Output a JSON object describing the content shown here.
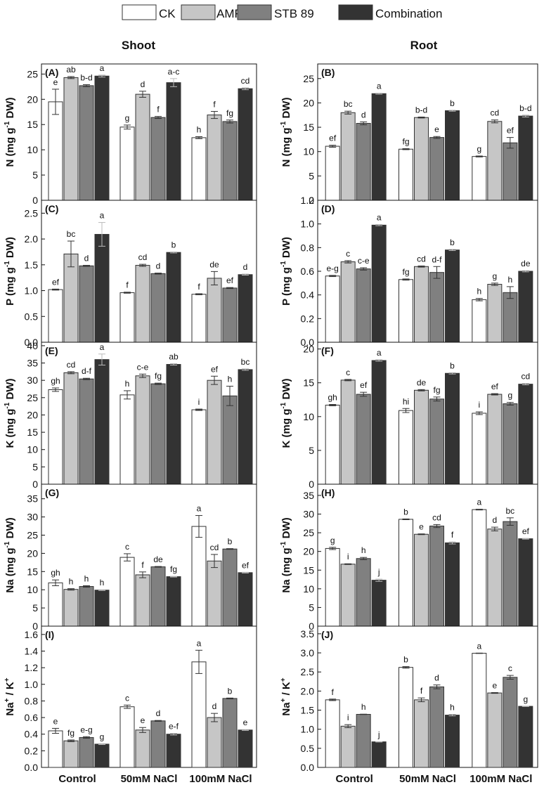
{
  "figure": {
    "legend": [
      "CK",
      "AMF",
      "STB 89",
      "Combination"
    ],
    "column_titles": [
      "Shoot",
      "Root"
    ],
    "groups": [
      "Control",
      "50mM NaCl",
      "100mM NaCl"
    ],
    "series_colors": [
      "#ffffff",
      "#c6c6c6",
      "#808080",
      "#333333"
    ]
  },
  "chart_data": [
    {
      "type": "bar",
      "panel_label": "(A)",
      "ylabel": "N (mg g-1 DW)",
      "ylabel_main": "N",
      "ylabel_unit": " (mg g",
      "ylabel_sup": "-1",
      "ylabel_end": " DW)",
      "ylim": [
        0,
        27
      ],
      "yticks": [
        0,
        5,
        10,
        15,
        20,
        25
      ],
      "tick_labels": [
        "0",
        "5",
        "10",
        "15",
        "20",
        "25"
      ],
      "categories": [
        "Control",
        "50mM NaCl",
        "100mM NaCl"
      ],
      "series": [
        {
          "name": "CK",
          "values": [
            19.5,
            14.5,
            12.4
          ],
          "errors": [
            2.5,
            0.4,
            0.2
          ],
          "letters": [
            "e",
            "g",
            "h"
          ]
        },
        {
          "name": "AMF",
          "values": [
            24.3,
            21.0,
            16.9
          ],
          "errors": [
            0.2,
            0.6,
            0.7
          ],
          "letters": [
            "ab",
            "d",
            "f"
          ]
        },
        {
          "name": "STB 89",
          "values": [
            22.7,
            16.4,
            15.6
          ],
          "errors": [
            0.2,
            0.2,
            0.3
          ],
          "letters": [
            "b-d",
            "f",
            "fg"
          ]
        },
        {
          "name": "Combination",
          "values": [
            24.6,
            23.3,
            22.1
          ],
          "errors": [
            0.2,
            0.8,
            0.2
          ],
          "letters": [
            "a",
            "a-c",
            "cd"
          ]
        }
      ]
    },
    {
      "type": "bar",
      "panel_label": "(B)",
      "ylabel": "N (mg g-1 DW)",
      "ylabel_main": "N",
      "ylabel_unit": " (mg g",
      "ylabel_sup": "-1",
      "ylabel_end": " DW)",
      "ylim": [
        0,
        28
      ],
      "yticks": [
        0,
        5,
        10,
        15,
        20,
        25
      ],
      "tick_labels": [
        "0",
        "5",
        "10",
        "15",
        "20",
        "25"
      ],
      "categories": [
        "Control",
        "50mM NaCl",
        "100mM NaCl"
      ],
      "series": [
        {
          "name": "CK",
          "values": [
            11.1,
            10.5,
            9.0
          ],
          "errors": [
            0.2,
            0.1,
            0.1
          ],
          "letters": [
            "ef",
            "fg",
            "g"
          ]
        },
        {
          "name": "AMF",
          "values": [
            18.0,
            17.0,
            16.2
          ],
          "errors": [
            0.3,
            0.1,
            0.3
          ],
          "letters": [
            "bc",
            "b-d",
            "cd"
          ]
        },
        {
          "name": "STB 89",
          "values": [
            15.8,
            12.9,
            11.8
          ],
          "errors": [
            0.3,
            0.2,
            1.1
          ],
          "letters": [
            "d",
            "e",
            "ef"
          ]
        },
        {
          "name": "Combination",
          "values": [
            21.9,
            18.4,
            17.3
          ],
          "errors": [
            0.1,
            0.1,
            0.2
          ],
          "letters": [
            "a",
            "b",
            "b-d"
          ]
        }
      ]
    },
    {
      "type": "bar",
      "panel_label": "(C)",
      "ylabel": "P (mg g-1 DW)",
      "ylabel_main": "P",
      "ylabel_unit": " (mg g",
      "ylabel_sup": "-1",
      "ylabel_end": " DW)",
      "ylim": [
        0,
        2.75
      ],
      "yticks": [
        0,
        0.5,
        1.0,
        1.5,
        2.0,
        2.5
      ],
      "tick_labels": [
        "0.0",
        "0.5",
        "1.0",
        "1.5",
        "2.0",
        "2.5"
      ],
      "categories": [
        "Control",
        "50mM NaCl",
        "100mM NaCl"
      ],
      "series": [
        {
          "name": "CK",
          "values": [
            1.02,
            0.96,
            0.93
          ],
          "errors": [
            0.01,
            0.01,
            0.01
          ],
          "letters": [
            "ef",
            "f",
            "f"
          ]
        },
        {
          "name": "AMF",
          "values": [
            1.71,
            1.49,
            1.24
          ],
          "errors": [
            0.25,
            0.02,
            0.13
          ],
          "letters": [
            "bc",
            "cd",
            "de"
          ]
        },
        {
          "name": "STB 89",
          "values": [
            1.48,
            1.33,
            1.05
          ],
          "errors": [
            0.01,
            0.01,
            0.01
          ],
          "letters": [
            "d",
            "d",
            "ef"
          ]
        },
        {
          "name": "Combination",
          "values": [
            2.09,
            1.74,
            1.31
          ],
          "errors": [
            0.23,
            0.01,
            0.01
          ],
          "letters": [
            "a",
            "b",
            "d"
          ]
        }
      ]
    },
    {
      "type": "bar",
      "panel_label": "(D)",
      "ylabel": "P (mg g-1 DW)",
      "ylabel_main": "P",
      "ylabel_unit": " (mg g",
      "ylabel_sup": "-1",
      "ylabel_end": " DW)",
      "ylim": [
        0,
        1.2
      ],
      "yticks": [
        0,
        0.2,
        0.4,
        0.6,
        0.8,
        1.0,
        1.2
      ],
      "tick_labels": [
        "0.0",
        "0.2",
        "0.4",
        "0.6",
        "0.8",
        "1.0",
        "1.2"
      ],
      "categories": [
        "Control",
        "50mM NaCl",
        "100mM NaCl"
      ],
      "series": [
        {
          "name": "CK",
          "values": [
            0.56,
            0.53,
            0.36
          ],
          "errors": [
            0.005,
            0.005,
            0.01
          ],
          "letters": [
            "e-g",
            "fg",
            "h"
          ]
        },
        {
          "name": "AMF",
          "values": [
            0.68,
            0.64,
            0.49
          ],
          "errors": [
            0.01,
            0.005,
            0.01
          ],
          "letters": [
            "c",
            "cd",
            "g"
          ]
        },
        {
          "name": "STB 89",
          "values": [
            0.62,
            0.59,
            0.42
          ],
          "errors": [
            0.01,
            0.05,
            0.05
          ],
          "letters": [
            "c-e",
            "d-f",
            "h"
          ]
        },
        {
          "name": "Combination",
          "values": [
            0.99,
            0.78,
            0.6
          ],
          "errors": [
            0.005,
            0.005,
            0.005
          ],
          "letters": [
            "a",
            "b",
            "de"
          ]
        }
      ]
    },
    {
      "type": "bar",
      "panel_label": "(E)",
      "ylabel": "K (mg g-1 DW)",
      "ylabel_main": "K",
      "ylabel_unit": " (mg g",
      "ylabel_sup": "-1",
      "ylabel_end": " DW)",
      "ylim": [
        0,
        41
      ],
      "yticks": [
        0,
        5,
        10,
        15,
        20,
        25,
        30,
        35,
        40
      ],
      "tick_labels": [
        "0",
        "5",
        "10",
        "15",
        "20",
        "25",
        "30",
        "35",
        "40"
      ],
      "categories": [
        "Control",
        "50mM NaCl",
        "100mM NaCl"
      ],
      "series": [
        {
          "name": "CK",
          "values": [
            27.3,
            25.8,
            21.5
          ],
          "errors": [
            0.5,
            1.2,
            0.2
          ],
          "letters": [
            "gh",
            "h",
            "i"
          ]
        },
        {
          "name": "AMF",
          "values": [
            32.2,
            31.3,
            30.0
          ],
          "errors": [
            0.3,
            0.5,
            1.2
          ],
          "letters": [
            "cd",
            "c-e",
            "ef"
          ]
        },
        {
          "name": "STB 89",
          "values": [
            30.4,
            29.0,
            25.5
          ],
          "errors": [
            0.2,
            0.2,
            2.8
          ],
          "letters": [
            "d-f",
            "fg",
            "h"
          ]
        },
        {
          "name": "Combination",
          "values": [
            36.0,
            34.6,
            33.1
          ],
          "errors": [
            1.6,
            0.2,
            0.2
          ],
          "letters": [
            "a",
            "ab",
            "bc"
          ]
        }
      ]
    },
    {
      "type": "bar",
      "panel_label": "(F)",
      "ylabel": "K (mg g-1 DW)",
      "ylabel_main": "K",
      "ylabel_unit": " (mg g",
      "ylabel_sup": "-1",
      "ylabel_end": " DW)",
      "ylim": [
        0,
        21
      ],
      "yticks": [
        0,
        5,
        10,
        15,
        20
      ],
      "tick_labels": [
        "0",
        "5",
        "10",
        "15",
        "20"
      ],
      "categories": [
        "Control",
        "50mM NaCl",
        "100mM NaCl"
      ],
      "series": [
        {
          "name": "CK",
          "values": [
            11.7,
            10.9,
            10.5
          ],
          "errors": [
            0.1,
            0.3,
            0.2
          ],
          "letters": [
            "gh",
            "hi",
            "i"
          ]
        },
        {
          "name": "AMF",
          "values": [
            15.4,
            13.9,
            13.3
          ],
          "errors": [
            0.1,
            0.1,
            0.1
          ],
          "letters": [
            "c",
            "de",
            "ef"
          ]
        },
        {
          "name": "STB 89",
          "values": [
            13.3,
            12.6,
            11.9
          ],
          "errors": [
            0.3,
            0.3,
            0.2
          ],
          "letters": [
            "ef",
            "fg",
            "g"
          ]
        },
        {
          "name": "Combination",
          "values": [
            18.3,
            16.4,
            14.8
          ],
          "errors": [
            0.1,
            0.1,
            0.1
          ],
          "letters": [
            "a",
            "b",
            "cd"
          ]
        }
      ]
    },
    {
      "type": "bar",
      "panel_label": "(G)",
      "ylabel": "Na (mg g-1 DW)",
      "ylabel_main": "Na",
      "ylabel_unit": " (mg g",
      "ylabel_sup": "-1",
      "ylabel_end": " DW)",
      "ylim": [
        0,
        39
      ],
      "yticks": [
        0,
        5,
        10,
        15,
        20,
        25,
        30,
        35
      ],
      "tick_labels": [
        "0",
        "5",
        "10",
        "15",
        "20",
        "25",
        "30",
        "35"
      ],
      "categories": [
        "Control",
        "50mM NaCl",
        "100mM NaCl"
      ],
      "series": [
        {
          "name": "CK",
          "values": [
            11.9,
            18.9,
            27.4
          ],
          "errors": [
            0.8,
            1.0,
            3.0
          ],
          "letters": [
            "gh",
            "c",
            "a"
          ]
        },
        {
          "name": "AMF",
          "values": [
            10.1,
            14.1,
            17.9
          ],
          "errors": [
            0.2,
            0.8,
            1.8
          ],
          "letters": [
            "h",
            "f",
            "cd"
          ]
        },
        {
          "name": "STB 89",
          "values": [
            10.9,
            16.3,
            21.2
          ],
          "errors": [
            0.2,
            0.1,
            0.1
          ],
          "letters": [
            "h",
            "de",
            "b"
          ]
        },
        {
          "name": "Combination",
          "values": [
            9.9,
            13.6,
            14.7
          ],
          "errors": [
            0.1,
            0.1,
            0.1
          ],
          "letters": [
            "h",
            "fg",
            "ef"
          ]
        }
      ]
    },
    {
      "type": "bar",
      "panel_label": "(H)",
      "ylabel": "Na (mg g-1 DW)",
      "ylabel_main": "Na",
      "ylabel_unit": " (mg g",
      "ylabel_sup": "-1",
      "ylabel_end": " DW)",
      "ylim": [
        0,
        38
      ],
      "yticks": [
        0,
        5,
        10,
        15,
        20,
        25,
        30,
        35
      ],
      "tick_labels": [
        "0",
        "5",
        "10",
        "15",
        "20",
        "25",
        "30",
        "35"
      ],
      "categories": [
        "Control",
        "50mM NaCl",
        "100mM NaCl"
      ],
      "series": [
        {
          "name": "CK",
          "values": [
            20.8,
            28.6,
            31.2
          ],
          "errors": [
            0.3,
            0.1,
            0.1
          ],
          "letters": [
            "g",
            "b",
            "a"
          ]
        },
        {
          "name": "AMF",
          "values": [
            16.6,
            24.6,
            26.0
          ],
          "errors": [
            0.1,
            0.1,
            0.5
          ],
          "letters": [
            "i",
            "e",
            "d"
          ]
        },
        {
          "name": "STB 89",
          "values": [
            18.1,
            26.8,
            28.0
          ],
          "errors": [
            0.3,
            0.4,
            1.0
          ],
          "letters": [
            "h",
            "cd",
            "bc"
          ]
        },
        {
          "name": "Combination",
          "values": [
            12.3,
            22.3,
            23.4
          ],
          "errors": [
            0.3,
            0.3,
            0.1
          ],
          "letters": [
            "j",
            "f",
            "ef"
          ]
        }
      ]
    },
    {
      "type": "bar",
      "panel_label": "(I)",
      "ylabel": "Na+ / K+",
      "ylabel_main": "Na",
      "ylabel_sup1": "+",
      "ylabel_mid": " / K",
      "ylabel_sup2": "+",
      "ylim": [
        0,
        1.7
      ],
      "yticks": [
        0,
        0.2,
        0.4,
        0.6,
        0.8,
        1.0,
        1.2,
        1.4,
        1.6
      ],
      "tick_labels": [
        "0.0",
        "0.2",
        "0.4",
        "0.6",
        "0.8",
        "1.0",
        "1.2",
        "1.4",
        "1.6"
      ],
      "categories": [
        "Control",
        "50mM NaCl",
        "100mM NaCl"
      ],
      "series": [
        {
          "name": "CK",
          "values": [
            0.44,
            0.73,
            1.27
          ],
          "errors": [
            0.03,
            0.02,
            0.14
          ],
          "letters": [
            "e",
            "c",
            "a"
          ]
        },
        {
          "name": "AMF",
          "values": [
            0.32,
            0.45,
            0.6
          ],
          "errors": [
            0.01,
            0.03,
            0.05
          ],
          "letters": [
            "fg",
            "e",
            "d"
          ]
        },
        {
          "name": "STB 89",
          "values": [
            0.36,
            0.56,
            0.83
          ],
          "errors": [
            0.01,
            0.005,
            0.005
          ],
          "letters": [
            "e-g",
            "d",
            "b"
          ]
        },
        {
          "name": "Combination",
          "values": [
            0.28,
            0.4,
            0.45
          ],
          "errors": [
            0.005,
            0.01,
            0.005
          ],
          "letters": [
            "g",
            "e-f",
            "e"
          ]
        }
      ]
    },
    {
      "type": "bar",
      "panel_label": "(J)",
      "ylabel": "Na+ / K+",
      "ylabel_main": "Na",
      "ylabel_sup1": "+",
      "ylabel_mid": " / K",
      "ylabel_sup2": "+",
      "ylim": [
        0,
        3.7
      ],
      "yticks": [
        0,
        0.5,
        1.0,
        1.5,
        2.0,
        2.5,
        3.0,
        3.5
      ],
      "tick_labels": [
        "0.0",
        "0.5",
        "1.0",
        "1.5",
        "2.0",
        "2.5",
        "3.0",
        "3.5"
      ],
      "categories": [
        "Control",
        "50mM NaCl",
        "100mM NaCl"
      ],
      "series": [
        {
          "name": "CK",
          "values": [
            1.77,
            2.62,
            2.99
          ],
          "errors": [
            0.02,
            0.02,
            0.005
          ],
          "letters": [
            "f",
            "b",
            "a"
          ]
        },
        {
          "name": "AMF",
          "values": [
            1.08,
            1.77,
            1.95
          ],
          "errors": [
            0.04,
            0.05,
            0.01
          ],
          "letters": [
            "i",
            "f",
            "e"
          ]
        },
        {
          "name": "STB 89",
          "values": [
            1.39,
            2.11,
            2.36
          ],
          "errors": [
            0.005,
            0.05,
            0.05
          ],
          "letters": [
            "h",
            "d",
            "c"
          ]
        },
        {
          "name": "Combination",
          "values": [
            0.67,
            1.37,
            1.6
          ],
          "errors": [
            0.005,
            0.02,
            0.005
          ],
          "letters": [
            "j",
            "h",
            "g"
          ]
        }
      ]
    }
  ]
}
